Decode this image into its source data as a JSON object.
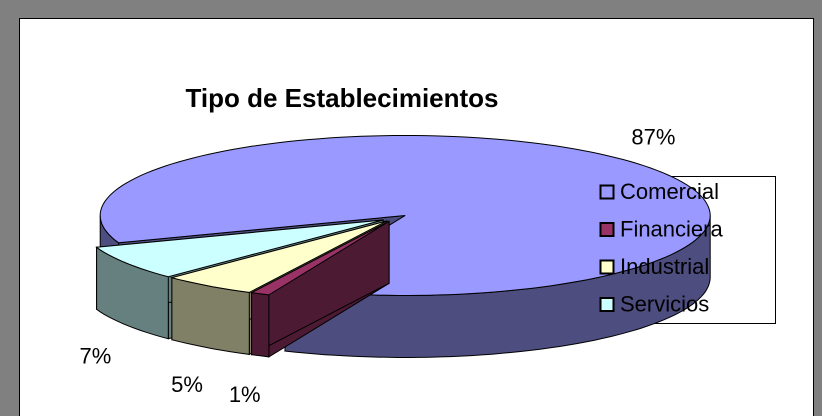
{
  "chart_data": {
    "type": "pie3d",
    "title": "Tipo de Establecimientos",
    "categories": [
      "Comercial",
      "Financiera",
      "Industrial",
      "Servicios"
    ],
    "values": [
      87,
      1,
      5,
      7
    ],
    "value_labels": [
      "87%",
      "1%",
      "5%",
      "7%"
    ],
    "colors": [
      "#9999ff",
      "#993366",
      "#ffffcc",
      "#ccffff"
    ],
    "legend": "right"
  }
}
